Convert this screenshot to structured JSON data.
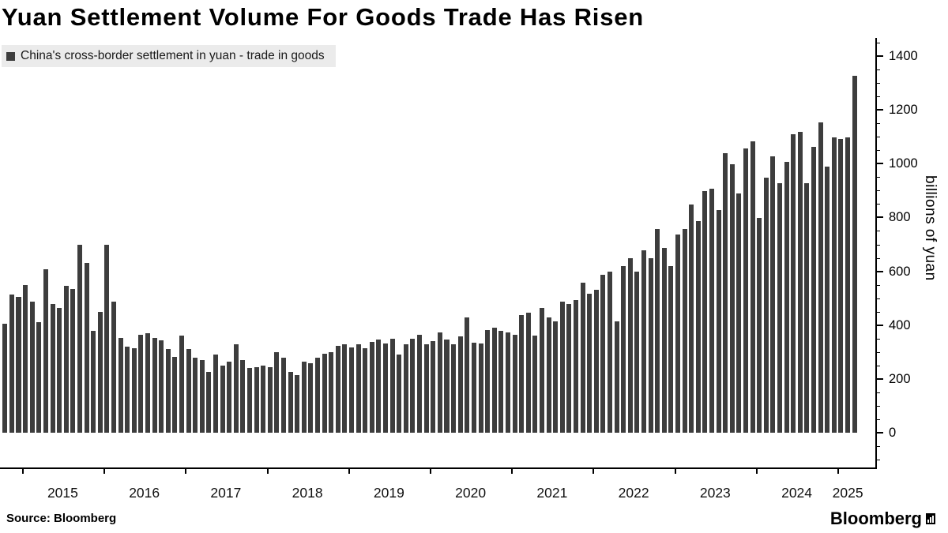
{
  "title": "Yuan Settlement Volume For Goods Trade Has Risen",
  "legend": {
    "label": "China's cross-border settlement in yuan - trade in goods",
    "swatch_color": "#3d3d3d"
  },
  "source": "Source: Bloomberg",
  "logo": {
    "text": "Bloomberg"
  },
  "chart_data": {
    "type": "bar",
    "title": "Yuan Settlement Volume For Goods Trade Has Risen",
    "series_name": "China's cross-border settlement in yuan - trade in goods",
    "frequency": "monthly",
    "start_month": "2014-10",
    "end_month": "2025-03",
    "ylabel": "billions of yuan",
    "ylim": [
      0,
      1400
    ],
    "yticks": [
      0,
      200,
      400,
      600,
      800,
      1000,
      1200,
      1400
    ],
    "x_tick_labels": [
      "2015",
      "2016",
      "2017",
      "2018",
      "2019",
      "2020",
      "2021",
      "2022",
      "2023",
      "2024",
      "2025"
    ],
    "bar_color": "#3d3d3d",
    "grid": false,
    "legend_position": "top-left",
    "axis_side": "right",
    "values": [
      405,
      515,
      505,
      550,
      487,
      410,
      607,
      478,
      465,
      545,
      533,
      700,
      630,
      380,
      450,
      700,
      487,
      352,
      320,
      315,
      365,
      370,
      353,
      343,
      310,
      283,
      360,
      310,
      280,
      270,
      225,
      290,
      250,
      263,
      330,
      270,
      240,
      245,
      250,
      245,
      300,
      280,
      225,
      215,
      263,
      258,
      280,
      293,
      300,
      323,
      330,
      318,
      330,
      313,
      338,
      345,
      333,
      350,
      290,
      330,
      350,
      363,
      330,
      340,
      373,
      345,
      330,
      358,
      428,
      335,
      333,
      383,
      390,
      378,
      373,
      365,
      438,
      445,
      360,
      463,
      428,
      415,
      488,
      478,
      493,
      558,
      518,
      530,
      588,
      598,
      415,
      618,
      648,
      598,
      678,
      648,
      758,
      688,
      618,
      738,
      758,
      848,
      788,
      898,
      908,
      828,
      1038,
      998,
      888,
      1058,
      1083,
      798,
      948,
      1028,
      928,
      1008,
      1108,
      1118,
      928,
      1063,
      1153,
      988,
      1098,
      1093,
      1098,
      1328
    ]
  }
}
